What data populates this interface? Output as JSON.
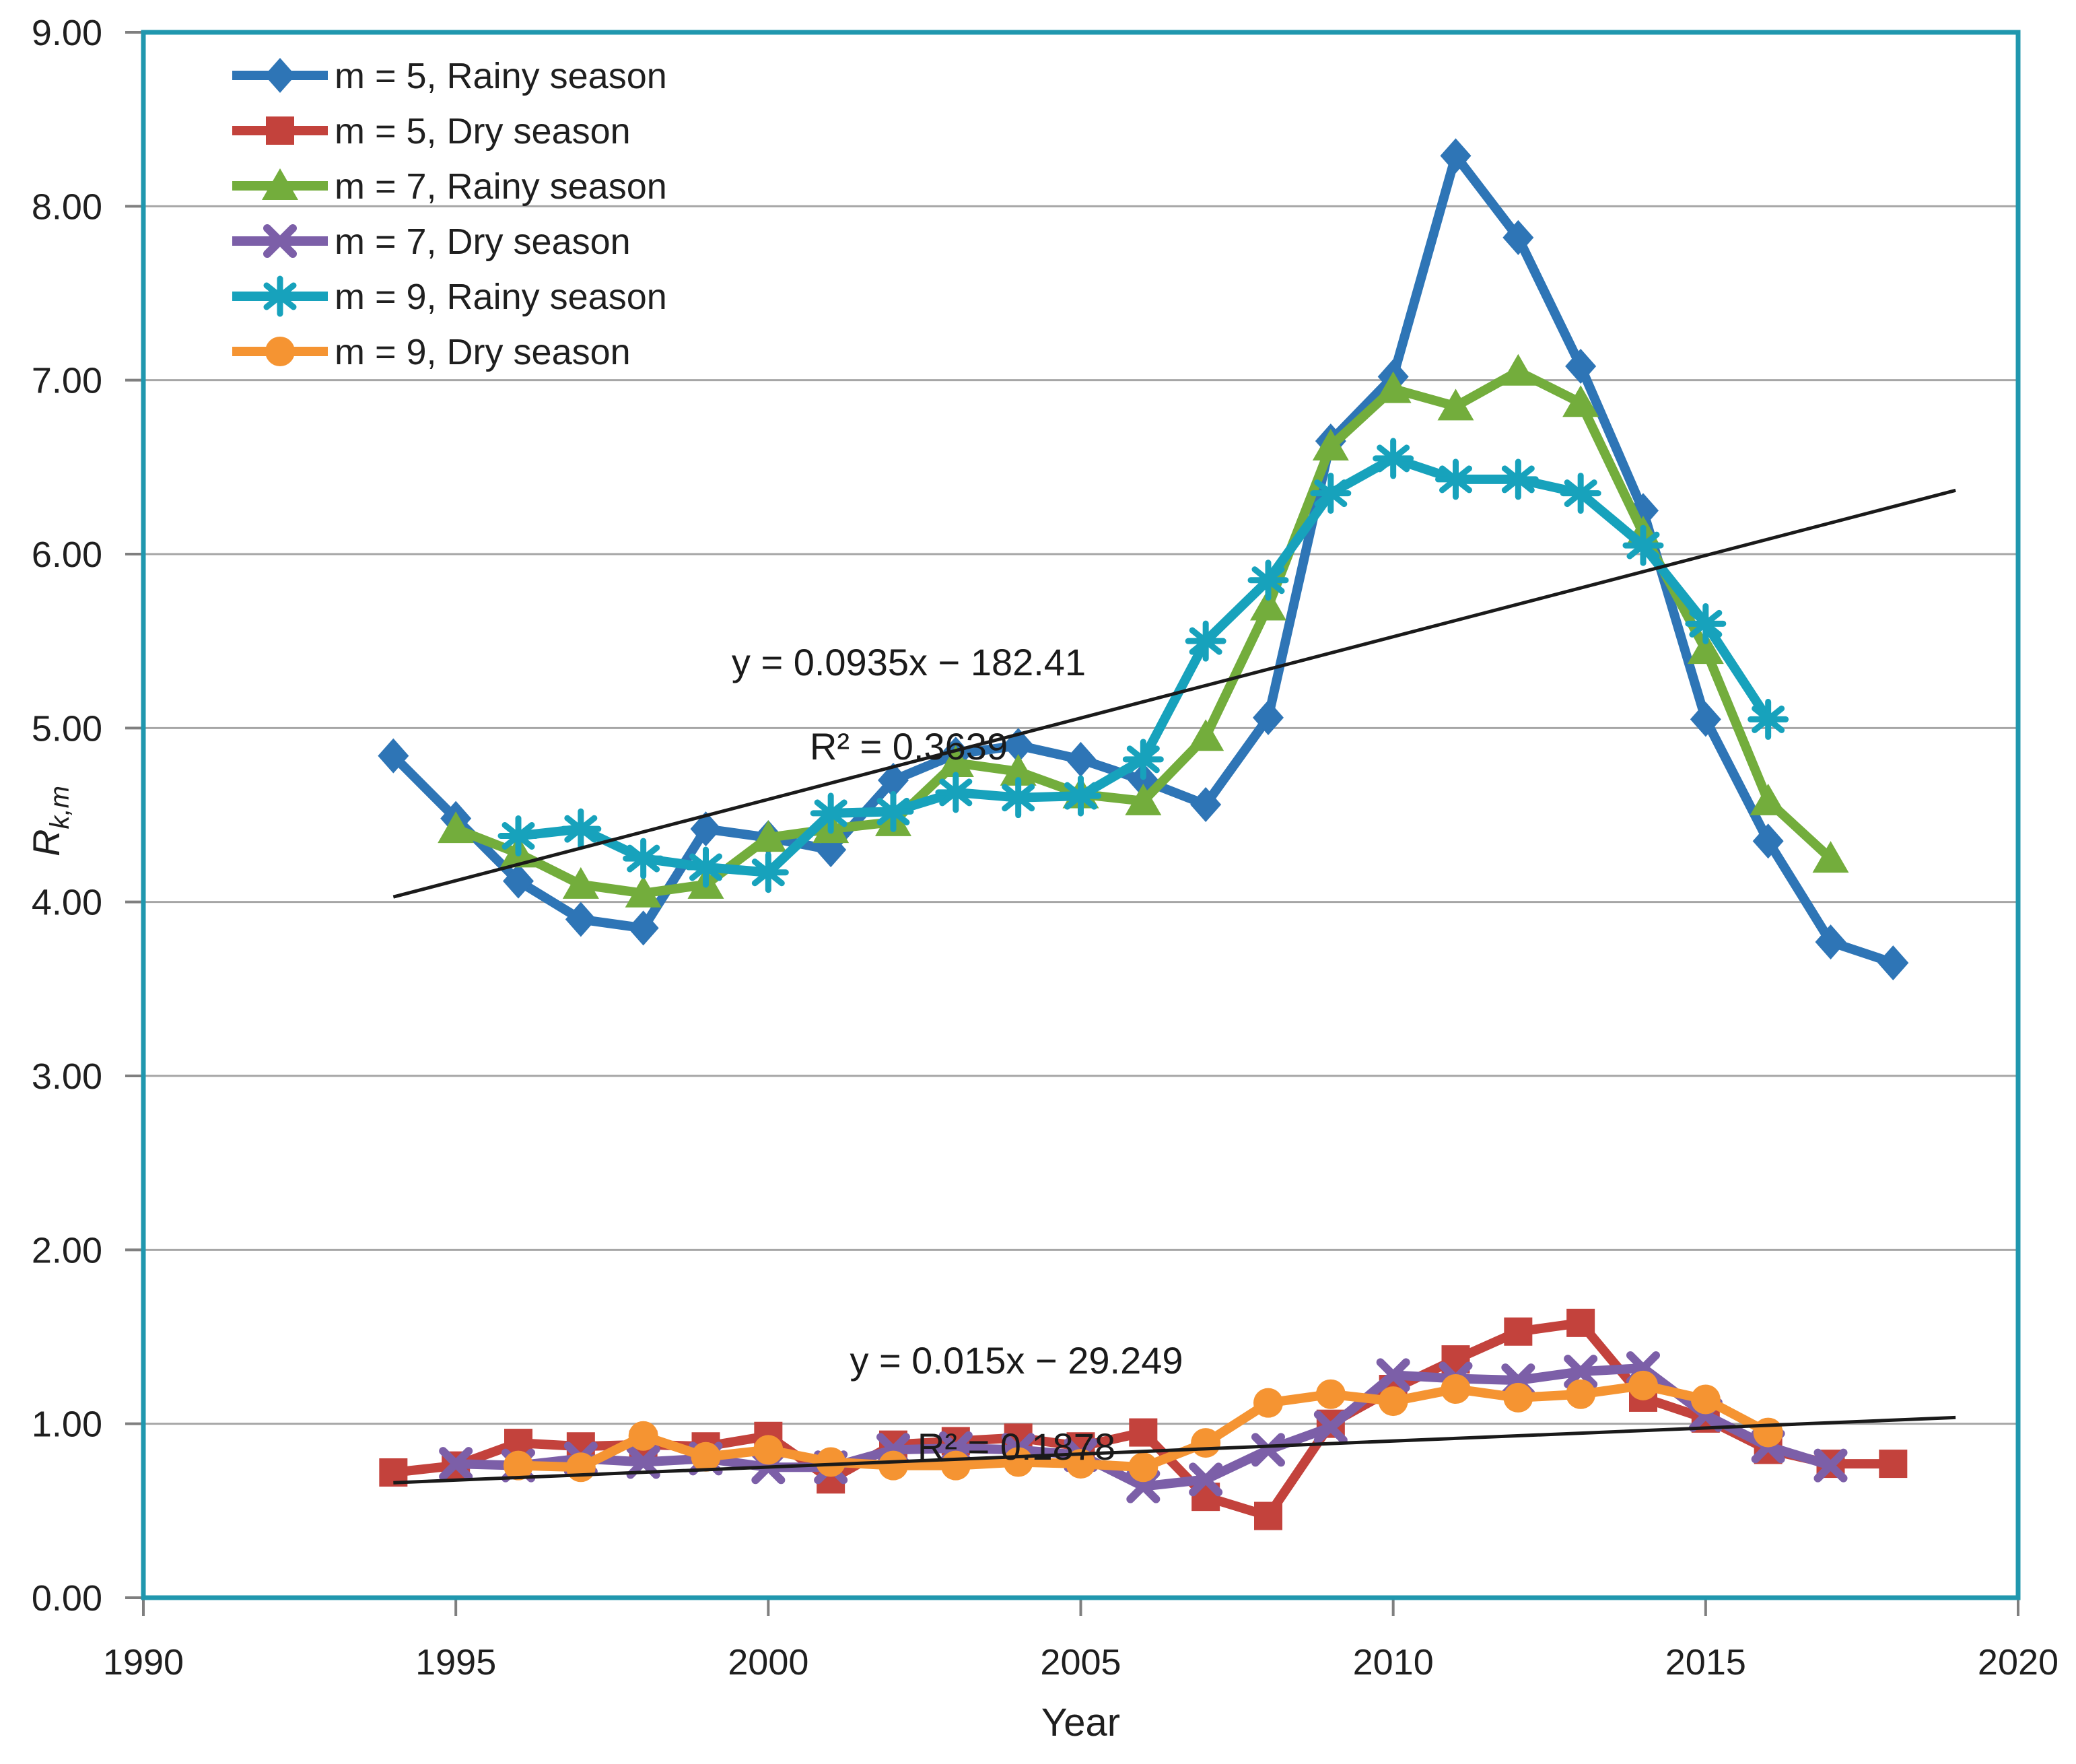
{
  "chart_data": {
    "type": "line",
    "title": "",
    "xlabel": "Year",
    "ylabel_main": "R",
    "ylabel_sub": "k,m",
    "xlim": [
      1990,
      2020
    ],
    "ylim": [
      0,
      9
    ],
    "x_ticks": [
      1990,
      1995,
      2000,
      2005,
      2010,
      2015,
      2020
    ],
    "y_ticks": [
      0,
      1,
      2,
      3,
      4,
      5,
      6,
      7,
      8,
      9
    ],
    "y_tick_decimals": 2,
    "grid": "horizontal-only",
    "legend_position": "top-left-inside",
    "border_color": "#2097ae",
    "axis_color": "#7f7f7f",
    "gridline_color": "#a6a6a6",
    "text_color": "#1f1f1f",
    "trend_color": "#1a1a1a",
    "series": [
      {
        "name": "m = 5, Rainy season",
        "color": "#2e75b6",
        "marker": "diamond",
        "points": [
          [
            1994,
            4.84
          ],
          [
            1995,
            4.48
          ],
          [
            1996,
            4.12
          ],
          [
            1997,
            3.9
          ],
          [
            1998,
            3.85
          ],
          [
            1999,
            4.42
          ],
          [
            2000,
            4.37
          ],
          [
            2001,
            4.3
          ],
          [
            2002,
            4.7
          ],
          [
            2003,
            4.85
          ],
          [
            2004,
            4.9
          ],
          [
            2005,
            4.82
          ],
          [
            2006,
            4.7
          ],
          [
            2007,
            4.56
          ],
          [
            2008,
            5.06
          ],
          [
            2009,
            6.65
          ],
          [
            2010,
            7.02
          ],
          [
            2011,
            8.29
          ],
          [
            2012,
            7.82
          ],
          [
            2013,
            7.08
          ],
          [
            2014,
            6.25
          ],
          [
            2015,
            5.05
          ],
          [
            2016,
            4.35
          ],
          [
            2017,
            3.77
          ],
          [
            2018,
            3.65
          ]
        ]
      },
      {
        "name": "m = 5, Dry season",
        "color": "#c3423c",
        "marker": "square",
        "points": [
          [
            1994,
            0.72
          ],
          [
            1995,
            0.76
          ],
          [
            1996,
            0.89
          ],
          [
            1997,
            0.87
          ],
          [
            1998,
            0.88
          ],
          [
            1999,
            0.87
          ],
          [
            2000,
            0.93
          ],
          [
            2001,
            0.68
          ],
          [
            2002,
            0.88
          ],
          [
            2003,
            0.9
          ],
          [
            2004,
            0.92
          ],
          [
            2005,
            0.87
          ],
          [
            2006,
            0.95
          ],
          [
            2007,
            0.58
          ],
          [
            2008,
            0.47
          ],
          [
            2009,
            1.0
          ],
          [
            2010,
            1.2
          ],
          [
            2011,
            1.37
          ],
          [
            2012,
            1.53
          ],
          [
            2013,
            1.58
          ],
          [
            2014,
            1.15
          ],
          [
            2015,
            1.03
          ],
          [
            2016,
            0.85
          ],
          [
            2017,
            0.77
          ],
          [
            2018,
            0.77
          ]
        ]
      },
      {
        "name": "m = 7, Rainy season",
        "color": "#73ad3c",
        "marker": "triangle",
        "points": [
          [
            1995,
            4.42
          ],
          [
            1996,
            4.28
          ],
          [
            1997,
            4.1
          ],
          [
            1998,
            4.05
          ],
          [
            1999,
            4.1
          ],
          [
            2000,
            4.37
          ],
          [
            2001,
            4.42
          ],
          [
            2002,
            4.46
          ],
          [
            2003,
            4.8
          ],
          [
            2004,
            4.75
          ],
          [
            2005,
            4.62
          ],
          [
            2006,
            4.58
          ],
          [
            2007,
            4.95
          ],
          [
            2008,
            5.7
          ],
          [
            2009,
            6.62
          ],
          [
            2010,
            6.95
          ],
          [
            2011,
            6.85
          ],
          [
            2012,
            7.05
          ],
          [
            2013,
            6.87
          ],
          [
            2014,
            6.12
          ],
          [
            2015,
            5.45
          ],
          [
            2016,
            4.58
          ],
          [
            2017,
            4.25
          ]
        ]
      },
      {
        "name": "m = 7, Dry season",
        "color": "#7c5fa8",
        "marker": "x",
        "points": [
          [
            1995,
            0.77
          ],
          [
            1996,
            0.76
          ],
          [
            1997,
            0.8
          ],
          [
            1998,
            0.78
          ],
          [
            1999,
            0.8
          ],
          [
            2000,
            0.75
          ],
          [
            2001,
            0.75
          ],
          [
            2002,
            0.85
          ],
          [
            2003,
            0.86
          ],
          [
            2004,
            0.85
          ],
          [
            2005,
            0.82
          ],
          [
            2006,
            0.64
          ],
          [
            2007,
            0.68
          ],
          [
            2008,
            0.85
          ],
          [
            2009,
            0.98
          ],
          [
            2010,
            1.28
          ],
          [
            2011,
            1.26
          ],
          [
            2012,
            1.25
          ],
          [
            2013,
            1.3
          ],
          [
            2014,
            1.32
          ],
          [
            2015,
            1.05
          ],
          [
            2016,
            0.87
          ],
          [
            2017,
            0.76
          ]
        ]
      },
      {
        "name": "m = 9, Rainy season",
        "color": "#17a2bc",
        "marker": "asterisk",
        "points": [
          [
            1996,
            4.38
          ],
          [
            1997,
            4.42
          ],
          [
            1998,
            4.25
          ],
          [
            1999,
            4.2
          ],
          [
            2000,
            4.17
          ],
          [
            2001,
            4.51
          ],
          [
            2002,
            4.52
          ],
          [
            2003,
            4.63
          ],
          [
            2004,
            4.6
          ],
          [
            2005,
            4.61
          ],
          [
            2006,
            4.82
          ],
          [
            2007,
            5.5
          ],
          [
            2008,
            5.85
          ],
          [
            2009,
            6.35
          ],
          [
            2010,
            6.55
          ],
          [
            2011,
            6.43
          ],
          [
            2012,
            6.43
          ],
          [
            2013,
            6.35
          ],
          [
            2014,
            6.05
          ],
          [
            2015,
            5.6
          ],
          [
            2016,
            5.05
          ]
        ]
      },
      {
        "name": "m = 9, Dry season",
        "color": "#f59432",
        "marker": "circle",
        "points": [
          [
            1996,
            0.76
          ],
          [
            1997,
            0.75
          ],
          [
            1998,
            0.93
          ],
          [
            1999,
            0.81
          ],
          [
            2000,
            0.85
          ],
          [
            2001,
            0.78
          ],
          [
            2002,
            0.76
          ],
          [
            2003,
            0.76
          ],
          [
            2004,
            0.78
          ],
          [
            2005,
            0.77
          ],
          [
            2006,
            0.75
          ],
          [
            2007,
            0.89
          ],
          [
            2008,
            1.12
          ],
          [
            2009,
            1.17
          ],
          [
            2010,
            1.13
          ],
          [
            2011,
            1.2
          ],
          [
            2012,
            1.15
          ],
          [
            2013,
            1.17
          ],
          [
            2014,
            1.22
          ],
          [
            2015,
            1.14
          ],
          [
            2016,
            0.95
          ]
        ]
      }
    ],
    "trendlines": [
      {
        "equation": "y = 0.0935x − 182.41",
        "r_squared": "R² = 0.3639",
        "slope": 0.0935,
        "intercept": -182.41,
        "x_start": 1994,
        "x_end": 2019
      },
      {
        "equation": "y = 0.015x − 29.249",
        "r_squared": "R² = 0.1878",
        "slope": 0.015,
        "intercept": -29.249,
        "x_start": 1994,
        "x_end": 2019
      }
    ]
  }
}
